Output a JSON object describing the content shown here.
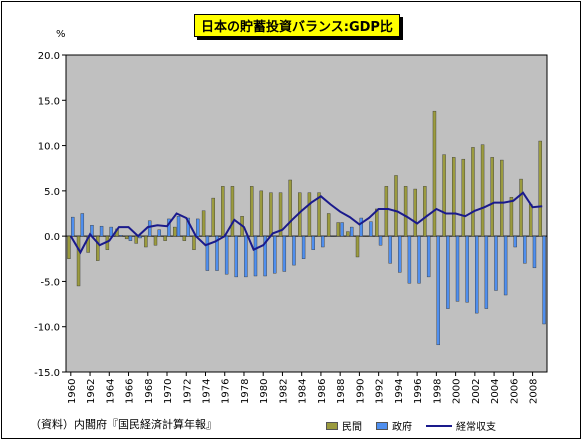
{
  "title": "日本の貯蓄投資バランス:GDP比",
  "source_note": "（資料）内閣府『国民経済計算年報』",
  "chart_data": {
    "type": "bar",
    "title": "日本の貯蓄投資バランス:GDP比",
    "ylabel": "%",
    "ylim": [
      -15,
      20
    ],
    "yticks": [
      20.0,
      15.0,
      10.0,
      5.0,
      0.0,
      -5.0,
      -10.0,
      -15.0
    ],
    "xticks": [
      "1960",
      "1962",
      "1964",
      "1966",
      "1968",
      "1970",
      "1972",
      "1974",
      "1976",
      "1978",
      "1980",
      "1982",
      "1984",
      "1986",
      "1988",
      "1990",
      "1992",
      "1994",
      "1996",
      "1998",
      "2000",
      "2002",
      "2004",
      "2006",
      "2008"
    ],
    "years": [
      1960,
      1961,
      1962,
      1963,
      1964,
      1965,
      1966,
      1967,
      1968,
      1969,
      1970,
      1971,
      1972,
      1973,
      1974,
      1975,
      1976,
      1977,
      1978,
      1979,
      1980,
      1981,
      1982,
      1983,
      1984,
      1985,
      1986,
      1987,
      1988,
      1989,
      1990,
      1991,
      1992,
      1993,
      1994,
      1995,
      1996,
      1997,
      1998,
      1999,
      2000,
      2001,
      2002,
      2003,
      2004,
      2005,
      2006,
      2007,
      2008,
      2009
    ],
    "grid": false,
    "legend_position": "bottom",
    "series": [
      {
        "name": "民間",
        "type": "bar",
        "color": "#9b9b3e",
        "values": [
          -2.5,
          -5.5,
          -1.8,
          -2.7,
          -1.5,
          0.8,
          -0.3,
          -0.8,
          -1.2,
          -1.0,
          -0.5,
          1.0,
          -0.5,
          -1.5,
          2.8,
          4.2,
          5.5,
          5.5,
          2.2,
          5.5,
          5.0,
          4.8,
          4.8,
          6.2,
          4.8,
          4.8,
          4.8,
          2.5,
          1.5,
          0.5,
          -2.3,
          0.0,
          3.0,
          5.5,
          6.7,
          5.5,
          5.2,
          5.5,
          13.8,
          9.0,
          8.7,
          8.5,
          9.8,
          10.1,
          8.7,
          8.4,
          4.3,
          6.3,
          3.5,
          10.5
        ]
      },
      {
        "name": "政府",
        "type": "bar",
        "color": "#4f8fef",
        "values": [
          2.1,
          2.5,
          1.2,
          1.1,
          1.0,
          0.1,
          -0.5,
          -0.2,
          1.7,
          0.7,
          1.9,
          2.2,
          2.0,
          1.9,
          -3.8,
          -3.8,
          -4.2,
          -4.5,
          -4.5,
          -4.4,
          -4.4,
          -4.1,
          -3.9,
          -3.2,
          -2.5,
          -1.5,
          -1.2,
          0.0,
          1.5,
          1.0,
          2.0,
          1.6,
          -1.0,
          -3.0,
          -4.0,
          -5.2,
          -5.2,
          -4.5,
          -12.0,
          -8.0,
          -7.2,
          -7.3,
          -8.5,
          -8.0,
          -6.0,
          -6.5,
          -1.2,
          -3.0,
          -3.5,
          -9.7
        ]
      },
      {
        "name": "経常収支",
        "type": "line",
        "color": "#1a1a8c",
        "values": [
          0.0,
          -1.8,
          0.2,
          -1.0,
          -0.5,
          1.0,
          1.0,
          0.0,
          1.0,
          1.2,
          1.1,
          2.5,
          2.0,
          0.0,
          -1.0,
          -0.6,
          0.0,
          1.8,
          1.0,
          -1.5,
          -1.0,
          0.3,
          0.7,
          1.8,
          2.8,
          3.7,
          4.4,
          3.5,
          2.7,
          2.1,
          1.3,
          2.0,
          3.0,
          3.0,
          2.7,
          2.1,
          1.4,
          2.2,
          3.0,
          2.5,
          2.5,
          2.2,
          2.8,
          3.2,
          3.7,
          3.7,
          3.9,
          4.8,
          3.2,
          3.3
        ]
      }
    ]
  }
}
